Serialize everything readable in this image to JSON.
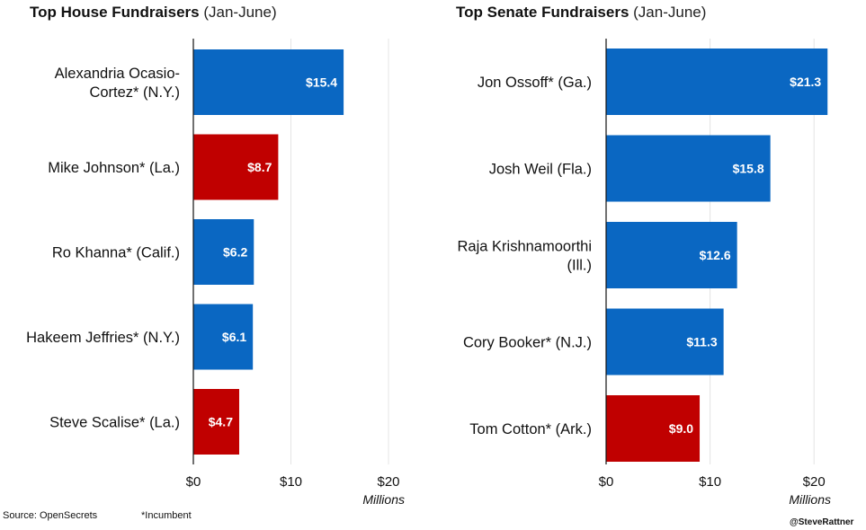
{
  "chart_data": [
    {
      "type": "bar",
      "orientation": "horizontal",
      "title": "Top House Fundraisers",
      "subtitle": "(Jan-June)",
      "categories": [
        "Alexandria Ocasio-Cortez* (N.Y.)",
        "Mike Johnson* (La.)",
        "Ro Khanna* (Calif.)",
        "Hakeem Jeffries* (N.Y.)",
        "Steve Scalise* (La.)"
      ],
      "category_lines": [
        [
          "Alexandria Ocasio-",
          "Cortez* (N.Y.)"
        ],
        [
          "Mike Johnson* (La.)"
        ],
        [
          "Ro Khanna* (Calif.)"
        ],
        [
          "Hakeem Jeffries* (N.Y.)"
        ],
        [
          "Steve Scalise* (La.)"
        ]
      ],
      "values": [
        15.4,
        8.7,
        6.2,
        6.1,
        4.7
      ],
      "value_labels": [
        "$15.4",
        "$8.7",
        "$6.2",
        "$6.1",
        "$4.7"
      ],
      "bar_colors": [
        "#0a67c2",
        "#c00000",
        "#0a67c2",
        "#0a67c2",
        "#c00000"
      ],
      "xlim": [
        0,
        20
      ],
      "xticks": [
        0,
        10,
        20
      ],
      "xtick_labels": [
        "$0",
        "$10",
        "$20"
      ],
      "xlabel": "Millions",
      "grid": true
    },
    {
      "type": "bar",
      "orientation": "horizontal",
      "title": "Top Senate Fundraisers",
      "subtitle": "(Jan-June)",
      "categories": [
        "Jon Ossoff* (Ga.)",
        "Josh Weil (Fla.)",
        "Raja Krishnamoorthi (Ill.)",
        "Cory Booker* (N.J.)",
        "Tom Cotton* (Ark.)"
      ],
      "category_lines": [
        [
          "Jon Ossoff* (Ga.)"
        ],
        [
          "Josh Weil (Fla.)"
        ],
        [
          "Raja Krishnamoorthi",
          "(Ill.)"
        ],
        [
          "Cory Booker* (N.J.)"
        ],
        [
          "Tom Cotton* (Ark.)"
        ]
      ],
      "values": [
        21.3,
        15.8,
        12.6,
        11.3,
        9.0
      ],
      "value_labels": [
        "$21.3",
        "$15.8",
        "$12.6",
        "$11.3",
        "$9.0"
      ],
      "bar_colors": [
        "#0a67c2",
        "#0a67c2",
        "#0a67c2",
        "#0a67c2",
        "#c00000"
      ],
      "xlim": [
        0,
        25
      ],
      "xticks": [
        0,
        10,
        20
      ],
      "xtick_labels": [
        "$0",
        "$10",
        "$20"
      ],
      "xlabel": "Millions",
      "grid": true
    }
  ],
  "footer": {
    "source": "Source: OpenSecrets",
    "note": "*Incumbent",
    "handle": "@SteveRattner"
  }
}
